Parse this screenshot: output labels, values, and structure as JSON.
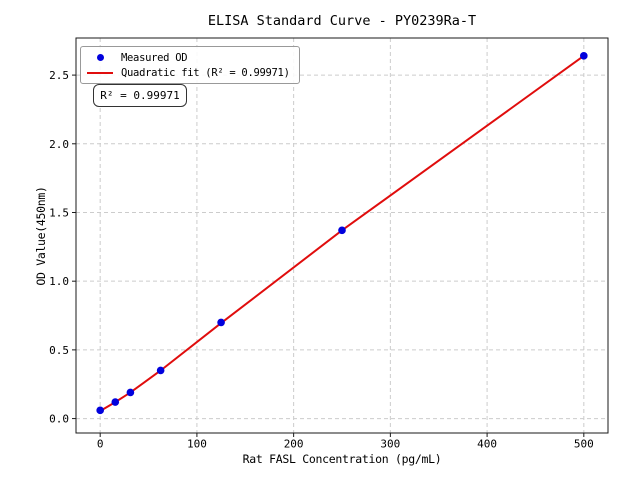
{
  "figure": {
    "title": "ELISA Standard Curve - PY0239Ra-T"
  },
  "legend": {
    "items": [
      {
        "label": "Measured OD",
        "marker": "dot"
      },
      {
        "label": "Quadratic fit (R² = 0.99971)",
        "marker": "line"
      }
    ]
  },
  "annotation": {
    "text": "R² = 0.99971"
  },
  "chart_data": {
    "type": "scatter",
    "title": "ELISA Standard Curve - PY0239Ra-T",
    "xlabel": "Rat FASL Concentration (pg/mL)",
    "ylabel": "OD Value(450nm)",
    "xlim": [
      -25,
      525
    ],
    "ylim": [
      -0.105,
      2.77
    ],
    "xticks": [
      0,
      100,
      200,
      300,
      400,
      500
    ],
    "yticks": [
      0.0,
      0.5,
      1.0,
      1.5,
      2.0,
      2.5
    ],
    "grid": true,
    "legend_position": "upper left",
    "colors": {
      "points": "#0101dd",
      "fit_line": "#e00d0d",
      "grid": "#cccccc",
      "spine": "#1a1a1a"
    },
    "series": [
      {
        "name": "Measured OD",
        "type": "scatter",
        "x": [
          0,
          15.6,
          31.25,
          62.5,
          125,
          250,
          500
        ],
        "y": [
          0.06,
          0.12,
          0.19,
          0.35,
          0.7,
          1.37,
          2.64
        ]
      },
      {
        "name": "Quadratic fit",
        "type": "line",
        "r_squared": 0.99971,
        "x": [
          0,
          15.6,
          31.25,
          62.5,
          125,
          250,
          500
        ],
        "y": [
          0.055,
          0.12,
          0.19,
          0.35,
          0.695,
          1.37,
          2.64
        ]
      }
    ]
  }
}
